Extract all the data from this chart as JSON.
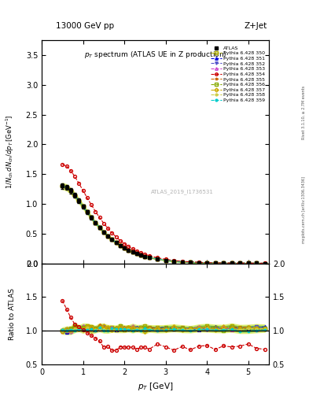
{
  "title_top": "13000 GeV pp",
  "title_right": "Z+Jet",
  "plot_title": "p_{T} spectrum (ATLAS UE in Z production)",
  "watermark": "ATLAS_2019_I1736531",
  "ylabel_main": "1/N_{ch} dN_{ch}/dp_{T} [GeV^{-1}]",
  "ylabel_ratio": "Ratio to ATLAS",
  "xlabel": "p_{T} [GeV]",
  "side_text1": "Rivet 3.1.10, ≥ 2.7M events",
  "side_text2": "mcplots.cern.ch [arXiv:1306.3436]",
  "xlim": [
    0,
    5.5
  ],
  "ylim_main": [
    0,
    3.75
  ],
  "ylim_ratio": [
    0.5,
    2.0
  ],
  "yticks_main": [
    0,
    0.5,
    1.0,
    1.5,
    2.0,
    2.5,
    3.0,
    3.5
  ],
  "yticks_ratio": [
    0.5,
    1.0,
    1.5,
    2.0
  ],
  "xticks": [
    0,
    1,
    2,
    3,
    4,
    5
  ],
  "pythia_params": [
    {
      "label": "Pythia 6.428 350",
      "color": "#aaaa00",
      "marker": "s",
      "filled": false,
      "scale": 1.0,
      "ratio_scale": 1.05
    },
    {
      "label": "Pythia 6.428 351",
      "color": "#0000dd",
      "marker": "^",
      "filled": true,
      "scale": 1.0,
      "ratio_scale": 1.04
    },
    {
      "label": "Pythia 6.428 352",
      "color": "#5555cc",
      "marker": "v",
      "filled": true,
      "scale": 1.0,
      "ratio_scale": 1.04
    },
    {
      "label": "Pythia 6.428 353",
      "color": "#cc44cc",
      "marker": "^",
      "filled": false,
      "scale": 1.0,
      "ratio_scale": 1.04
    },
    {
      "label": "Pythia 6.428 354",
      "color": "#cc0000",
      "marker": "o",
      "filled": false,
      "scale": 1.28,
      "ratio_scale": 0.78
    },
    {
      "label": "Pythia 6.428 355",
      "color": "#cc6600",
      "marker": "*",
      "filled": true,
      "scale": 1.0,
      "ratio_scale": 1.04
    },
    {
      "label": "Pythia 6.428 356",
      "color": "#88aa00",
      "marker": "s",
      "filled": false,
      "scale": 1.0,
      "ratio_scale": 1.04
    },
    {
      "label": "Pythia 6.428 357",
      "color": "#ccaa00",
      "marker": "D",
      "filled": false,
      "scale": 1.0,
      "ratio_scale": 1.04
    },
    {
      "label": "Pythia 6.428 358",
      "color": "#cccc44",
      "marker": ".",
      "filled": false,
      "scale": 1.0,
      "ratio_scale": 1.02
    },
    {
      "label": "Pythia 6.428 359",
      "color": "#00cccc",
      "marker": ".",
      "filled": true,
      "scale": 1.0,
      "ratio_scale": 1.02
    }
  ]
}
